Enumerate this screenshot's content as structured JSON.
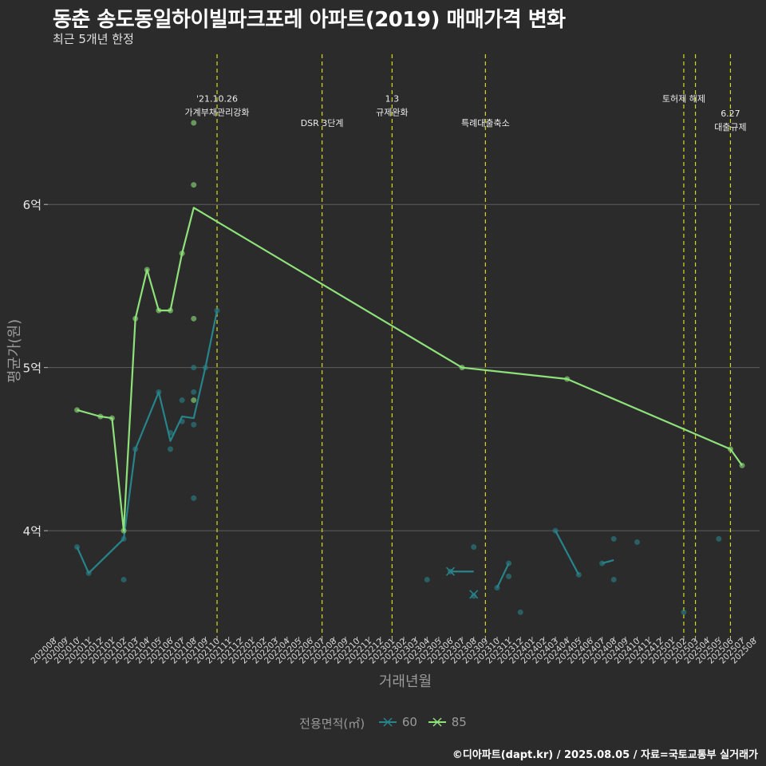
{
  "header": {
    "title": "동춘 송도동일하이빌파크포레 아파트(2019) 매매가격 변화",
    "subtitle": "최근 5개년 한정"
  },
  "caption": "©디아파트(dapt.kr) / 2025.08.05 / 자료=국토교통부 실거래가",
  "legend": {
    "title": "전용면적(㎡)",
    "items": [
      {
        "label": "60",
        "color": "#26848a"
      },
      {
        "label": "85",
        "color": "#8fe27a"
      }
    ]
  },
  "chart_data": {
    "type": "line",
    "xlabel": "거래년월",
    "ylabel": "평균가(원)",
    "ylim": [
      3.35,
      6.95
    ],
    "y_ticks": [
      {
        "value": 4,
        "label": "4억"
      },
      {
        "value": 5,
        "label": "5억"
      },
      {
        "value": 6,
        "label": "6억"
      }
    ],
    "x_ticks": [
      "202008",
      "202009",
      "202010",
      "202011",
      "202012",
      "202101",
      "202102",
      "202103",
      "202104",
      "202105",
      "202106",
      "202107",
      "202108",
      "202109",
      "202110",
      "202111",
      "202112",
      "202201",
      "202202",
      "202203",
      "202204",
      "202205",
      "202206",
      "202207",
      "202208",
      "202209",
      "202210",
      "202211",
      "202212",
      "202301",
      "202302",
      "202303",
      "202304",
      "202305",
      "202306",
      "202307",
      "202308",
      "202309",
      "202310",
      "202311",
      "202312",
      "202401",
      "202402",
      "202403",
      "202404",
      "202405",
      "202406",
      "202407",
      "202408",
      "202409",
      "202410",
      "202411",
      "202412",
      "202501",
      "202502",
      "202503",
      "202504",
      "202505",
      "202506",
      "202507",
      "202508"
    ],
    "events": [
      {
        "month": "202110",
        "label": "'21.10.26\n가계부채관리강화",
        "label_value": 6.63
      },
      {
        "month": "202207",
        "label": "DSR 3단계",
        "label_value": 6.48
      },
      {
        "month": "202301",
        "label": "1.3\n규제완화",
        "label_value": 6.63
      },
      {
        "month": "202309",
        "label": "특례대출축소",
        "label_value": 6.48
      },
      {
        "month": "202502",
        "label": "토허제 해제",
        "label_value": 6.63
      },
      {
        "month": "202503",
        "label": "",
        "label_value": 6.63
      },
      {
        "month": "202506",
        "label": "6.27\n대출규제",
        "label_value": 6.54
      }
    ],
    "series": [
      {
        "name": "60",
        "color": "#26848a",
        "segments": [
          [
            [
              "202010",
              3.9
            ],
            [
              "202011",
              3.74
            ],
            [
              "202102",
              3.95
            ]
          ],
          [
            [
              "202102",
              3.95
            ],
            [
              "202103",
              4.5
            ],
            [
              "202105",
              4.85
            ],
            [
              "202106",
              4.55
            ],
            [
              "202107",
              4.7
            ],
            [
              "202108",
              4.69
            ],
            [
              "202109",
              5.0
            ],
            [
              "202110",
              5.35
            ]
          ],
          [
            [
              "202306",
              3.75
            ],
            [
              "202308",
              3.75
            ]
          ],
          [
            [
              "202310",
              3.65
            ],
            [
              "202311",
              3.8
            ]
          ],
          [
            [
              "202403",
              4.0
            ],
            [
              "202405",
              3.73
            ]
          ],
          [
            [
              "202407",
              3.8
            ],
            [
              "202408",
              3.82
            ]
          ]
        ],
        "points": [
          [
            "202010",
            3.9
          ],
          [
            "202011",
            3.74
          ],
          [
            "202102",
            3.7
          ],
          [
            "202102",
            3.95
          ],
          [
            "202103",
            4.5
          ],
          [
            "202105",
            4.85
          ],
          [
            "202106",
            4.5
          ],
          [
            "202106",
            4.6
          ],
          [
            "202107",
            4.67
          ],
          [
            "202107",
            4.8
          ],
          [
            "202108",
            4.2
          ],
          [
            "202108",
            4.65
          ],
          [
            "202108",
            4.85
          ],
          [
            "202108",
            5.0
          ],
          [
            "202109",
            5.0
          ],
          [
            "202110",
            5.35
          ],
          [
            "202304",
            3.7
          ],
          [
            "202306",
            3.75
          ],
          [
            "202308",
            3.9
          ],
          [
            "202308",
            3.6
          ],
          [
            "202310",
            3.65
          ],
          [
            "202311",
            3.72
          ],
          [
            "202311",
            3.8
          ],
          [
            "202312",
            3.5
          ],
          [
            "202403",
            4.0
          ],
          [
            "202405",
            3.73
          ],
          [
            "202407",
            3.8
          ],
          [
            "202408",
            3.95
          ],
          [
            "202408",
            3.7
          ],
          [
            "202410",
            3.93
          ],
          [
            "202502",
            3.5
          ],
          [
            "202505",
            3.95
          ]
        ],
        "cross_markers": [
          [
            "202306",
            3.75
          ],
          [
            "202308",
            3.61
          ]
        ]
      },
      {
        "name": "85",
        "color": "#8fe27a",
        "segments": [
          [
            [
              "202010",
              4.74
            ],
            [
              "202012",
              4.7
            ],
            [
              "202101",
              4.69
            ],
            [
              "202102",
              4.0
            ],
            [
              "202103",
              5.3
            ],
            [
              "202104",
              5.6
            ],
            [
              "202105",
              5.35
            ],
            [
              "202106",
              5.35
            ],
            [
              "202107",
              5.7
            ],
            [
              "202108",
              5.98
            ],
            [
              "202307",
              5.0
            ],
            [
              "202404",
              4.93
            ],
            [
              "202506",
              4.5
            ],
            [
              "202507",
              4.4
            ]
          ]
        ],
        "points": [
          [
            "202010",
            4.74
          ],
          [
            "202012",
            4.7
          ],
          [
            "202101",
            4.69
          ],
          [
            "202102",
            4.0
          ],
          [
            "202103",
            5.3
          ],
          [
            "202104",
            5.6
          ],
          [
            "202105",
            5.35
          ],
          [
            "202106",
            5.35
          ],
          [
            "202107",
            5.7
          ],
          [
            "202108",
            6.5
          ],
          [
            "202108",
            6.12
          ],
          [
            "202108",
            5.3
          ],
          [
            "202108",
            4.8
          ],
          [
            "202307",
            5.0
          ],
          [
            "202404",
            4.93
          ],
          [
            "202506",
            4.5
          ],
          [
            "202507",
            4.4
          ]
        ]
      }
    ]
  }
}
